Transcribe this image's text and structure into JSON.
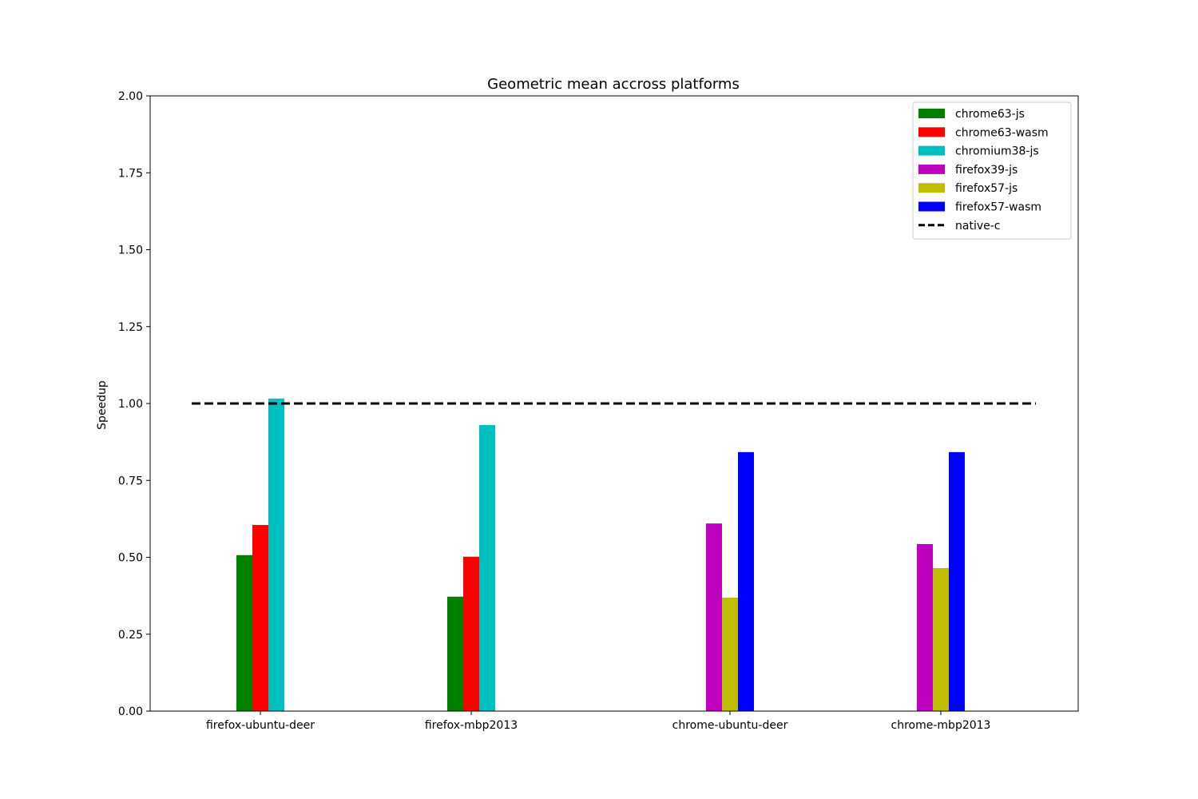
{
  "chart_data": {
    "type": "bar",
    "title": "Geometric mean accross platforms",
    "xlabel": "",
    "ylabel": "Speedup",
    "ylim": [
      0,
      2.0
    ],
    "yticks": [
      "0.00",
      "0.25",
      "0.50",
      "0.75",
      "1.00",
      "1.25",
      "1.50",
      "1.75",
      "2.00"
    ],
    "grid": false,
    "legend_position": "top-right",
    "categories": [
      "firefox-ubuntu-deer",
      "firefox-mbp2013",
      "chrome-ubuntu-deer",
      "chrome-mbp2013"
    ],
    "series": [
      {
        "name": "chrome63-js",
        "color": "#008000",
        "values": [
          0.507,
          0.372,
          null,
          null
        ]
      },
      {
        "name": "chrome63-wasm",
        "color": "#ff0000",
        "values": [
          0.605,
          0.502,
          null,
          null
        ]
      },
      {
        "name": "chromium38-js",
        "color": "#00bfbf",
        "values": [
          1.016,
          0.93,
          null,
          null
        ]
      },
      {
        "name": "firefox39-js",
        "color": "#bf00bf",
        "values": [
          null,
          null,
          0.61,
          0.543
        ]
      },
      {
        "name": "firefox57-js",
        "color": "#bfbf00",
        "values": [
          null,
          null,
          0.369,
          0.465
        ]
      },
      {
        "name": "firefox57-wasm",
        "color": "#0000ff",
        "values": [
          null,
          null,
          0.842,
          0.842
        ]
      }
    ],
    "reference_line": {
      "name": "native-c",
      "value": 1.0,
      "color": "#000000",
      "style": "dashed"
    }
  }
}
